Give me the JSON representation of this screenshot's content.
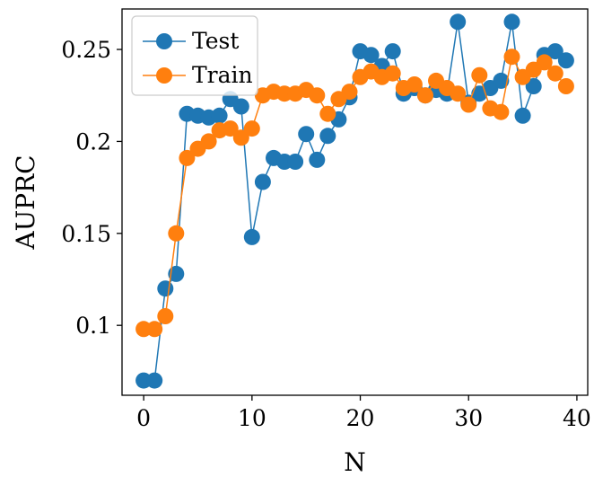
{
  "chart_data": {
    "type": "line",
    "xlabel": "N",
    "ylabel": "AUPRC",
    "xlim": [
      -2,
      41
    ],
    "ylim": [
      0.062,
      0.272
    ],
    "xticks": [
      0,
      10,
      20,
      30,
      40
    ],
    "yticks": [
      0.1,
      0.15,
      0.2,
      0.25
    ],
    "xtick_labels": [
      "0",
      "10",
      "20",
      "30",
      "40"
    ],
    "ytick_labels": [
      "0.1",
      "0.15",
      "0.2",
      "0.25"
    ],
    "grid": false,
    "legend_position": "top-left",
    "x": [
      0,
      1,
      2,
      3,
      4,
      5,
      6,
      7,
      8,
      9,
      10,
      11,
      12,
      13,
      14,
      15,
      16,
      17,
      18,
      19,
      20,
      21,
      22,
      23,
      24,
      25,
      26,
      27,
      28,
      29,
      30,
      31,
      32,
      33,
      34,
      35,
      36,
      37,
      38,
      39
    ],
    "series": [
      {
        "name": "Test",
        "color": "#1f77b4",
        "values": [
          0.07,
          0.07,
          0.12,
          0.128,
          0.215,
          0.214,
          0.213,
          0.214,
          0.223,
          0.219,
          0.148,
          0.178,
          0.191,
          0.189,
          0.189,
          0.204,
          0.19,
          0.203,
          0.212,
          0.224,
          0.249,
          0.247,
          0.241,
          0.249,
          0.226,
          0.229,
          0.225,
          0.228,
          0.226,
          0.265,
          0.221,
          0.226,
          0.229,
          0.233,
          0.265,
          0.214,
          0.23,
          0.247,
          0.249,
          0.244
        ]
      },
      {
        "name": "Train",
        "color": "#ff7f0e",
        "values": [
          0.098,
          0.098,
          0.105,
          0.15,
          0.191,
          0.196,
          0.2,
          0.206,
          0.207,
          0.202,
          0.207,
          0.225,
          0.227,
          0.226,
          0.226,
          0.228,
          0.225,
          0.215,
          0.223,
          0.227,
          0.235,
          0.238,
          0.235,
          0.237,
          0.229,
          0.231,
          0.225,
          0.233,
          0.229,
          0.226,
          0.22,
          0.236,
          0.218,
          0.216,
          0.246,
          0.235,
          0.239,
          0.243,
          0.237,
          0.23
        ]
      }
    ]
  }
}
